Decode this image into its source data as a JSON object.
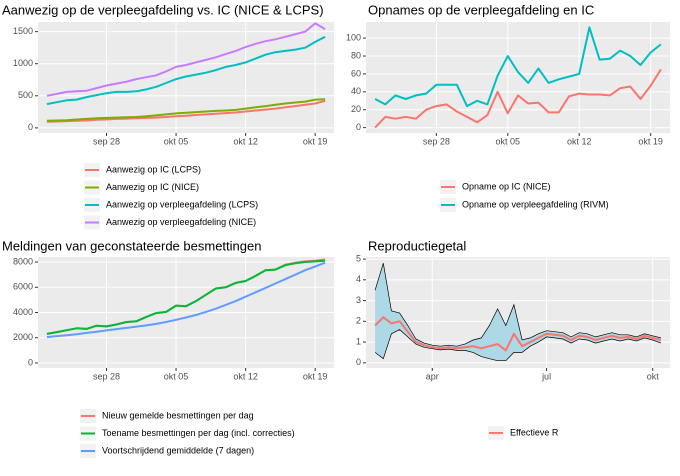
{
  "chart_data": [
    {
      "type": "line",
      "title": "Aanwezig op de verpleegafdeling vs. IC (NICE & LCPS)",
      "categories": [
        null,
        null,
        null,
        null,
        null,
        null,
        "sep 28",
        null,
        null,
        null,
        null,
        null,
        null,
        "okt 05",
        null,
        null,
        null,
        null,
        null,
        null,
        "okt 12",
        null,
        null,
        null,
        null,
        null,
        null,
        "okt 19",
        null
      ],
      "ylim": [
        -80,
        1650
      ],
      "yticks": [
        0,
        500,
        1000,
        1500
      ],
      "grid": true,
      "legend": "bottom",
      "series": [
        {
          "name": "Aanwezig op IC (LCPS)",
          "color": "#f8766d",
          "values": [
            95,
            100,
            105,
            110,
            115,
            125,
            130,
            140,
            145,
            150,
            155,
            160,
            170,
            180,
            190,
            200,
            210,
            220,
            230,
            240,
            255,
            270,
            285,
            300,
            320,
            340,
            360,
            380,
            420
          ]
        },
        {
          "name": "Aanwezig op IC (NICE)",
          "color": "#7cae00",
          "values": [
            110,
            115,
            120,
            130,
            140,
            150,
            155,
            160,
            165,
            170,
            180,
            195,
            210,
            225,
            235,
            245,
            255,
            265,
            270,
            280,
            300,
            320,
            340,
            360,
            380,
            395,
            410,
            440,
            445
          ]
        },
        {
          "name": "Aanwezig op verpleegafdeling (LCPS)",
          "color": "#00bfc4",
          "values": [
            370,
            400,
            430,
            440,
            480,
            510,
            540,
            560,
            560,
            570,
            600,
            640,
            700,
            760,
            800,
            830,
            860,
            900,
            950,
            980,
            1020,
            1080,
            1140,
            1180,
            1200,
            1220,
            1250,
            1340,
            1420
          ]
        },
        {
          "name": "Aanwezig op verpleegafdeling (NICE)",
          "color": "#c77cff",
          "values": [
            500,
            530,
            560,
            570,
            580,
            620,
            660,
            690,
            720,
            760,
            790,
            820,
            880,
            950,
            980,
            1020,
            1060,
            1100,
            1150,
            1200,
            1260,
            1310,
            1350,
            1380,
            1420,
            1460,
            1500,
            1630,
            1540
          ]
        }
      ]
    },
    {
      "type": "line",
      "title": "Opnames op de verpleegafdeling en IC",
      "categories": [
        null,
        null,
        null,
        null,
        null,
        null,
        "sep 28",
        null,
        null,
        null,
        null,
        null,
        null,
        "okt 05",
        null,
        null,
        null,
        null,
        null,
        null,
        "okt 12",
        null,
        null,
        null,
        null,
        null,
        null,
        "okt 19",
        null
      ],
      "ylim": [
        -6,
        118
      ],
      "yticks": [
        0,
        20,
        40,
        60,
        80,
        100
      ],
      "grid": true,
      "legend": "bottom",
      "series": [
        {
          "name": "Opname op IC (NICE)",
          "color": "#f8766d",
          "values": [
            0,
            12,
            10,
            12,
            10,
            20,
            24,
            26,
            18,
            12,
            6,
            14,
            40,
            16,
            36,
            27,
            28,
            17,
            17,
            35,
            38,
            37,
            37,
            36,
            44,
            46,
            32,
            47,
            65
          ]
        },
        {
          "name": "Opname op verpleegafdeling (RIVM)",
          "color": "#00bfc4",
          "values": [
            32,
            26,
            36,
            32,
            36,
            38,
            48,
            48,
            48,
            24,
            30,
            26,
            58,
            80,
            62,
            50,
            66,
            50,
            54,
            57,
            60,
            112,
            76,
            77,
            86,
            80,
            70,
            84,
            93
          ]
        }
      ]
    },
    {
      "type": "line",
      "title": "Meldingen van geconstateerde besmettingen",
      "categories": [
        null,
        null,
        null,
        null,
        null,
        null,
        "sep 28",
        null,
        null,
        null,
        null,
        null,
        null,
        "okt 05",
        null,
        null,
        null,
        null,
        null,
        null,
        "okt 12",
        null,
        null,
        null,
        null,
        null,
        null,
        "okt 19",
        null
      ],
      "ylim": [
        -400,
        8400
      ],
      "yticks": [
        0,
        2000,
        4000,
        6000,
        8000
      ],
      "grid": true,
      "legend": "bottom",
      "series": [
        {
          "name": "Nieuw gemelde besmettingen per dag",
          "color": "#f8766d",
          "values": [
            2300,
            2450,
            2600,
            2750,
            2700,
            2950,
            2900,
            3050,
            3250,
            3300,
            3650,
            3950,
            4050,
            4550,
            4500,
            4900,
            5400,
            5900,
            6000,
            6350,
            6500,
            6900,
            7350,
            7400,
            7800,
            7950,
            8050,
            8100,
            8200
          ]
        },
        {
          "name": "Toename besmettingen per dag (incl. correcties)",
          "color": "#00ba38",
          "values": [
            2300,
            2450,
            2600,
            2750,
            2700,
            2950,
            2900,
            3050,
            3250,
            3300,
            3650,
            3950,
            4050,
            4550,
            4500,
            4900,
            5400,
            5900,
            6000,
            6350,
            6500,
            6900,
            7350,
            7400,
            7750,
            7900,
            8000,
            8050,
            8100
          ]
        },
        {
          "name": "Voortschrijdend gemiddelde (7 dagen)",
          "color": "#619cff",
          "values": [
            2050,
            2130,
            2200,
            2280,
            2380,
            2480,
            2580,
            2680,
            2780,
            2880,
            2980,
            3100,
            3250,
            3420,
            3600,
            3800,
            4050,
            4300,
            4600,
            4900,
            5250,
            5600,
            5950,
            6300,
            6650,
            7000,
            7350,
            7650,
            7950
          ]
        }
      ]
    },
    {
      "type": "line",
      "title": "Reproductiegetal",
      "categories": [
        null,
        null,
        null,
        null,
        null,
        null,
        null,
        "apr",
        null,
        null,
        null,
        null,
        null,
        null,
        null,
        null,
        null,
        null,
        null,
        null,
        null,
        "jul",
        null,
        null,
        null,
        null,
        null,
        null,
        null,
        null,
        null,
        null,
        null,
        null,
        "okt",
        null
      ],
      "ylim": [
        -0.25,
        5.1
      ],
      "yticks": [
        0,
        1,
        2,
        3,
        4,
        5
      ],
      "grid": true,
      "legend": "bottom",
      "band": {
        "color": "#add8e6",
        "edge": "#000000",
        "upper": [
          3.5,
          4.8,
          2.5,
          2.4,
          1.8,
          1.15,
          0.95,
          0.85,
          0.8,
          0.85,
          0.8,
          0.9,
          1.1,
          1.2,
          1.8,
          2.6,
          1.8,
          2.8,
          1.1,
          1.2,
          1.4,
          1.55,
          1.5,
          1.45,
          1.25,
          1.45,
          1.4,
          1.25,
          1.35,
          1.45,
          1.35,
          1.35,
          1.25,
          1.4,
          1.3,
          1.2
        ],
        "lower": [
          0.5,
          0.2,
          1.4,
          1.6,
          1.25,
          0.9,
          0.75,
          0.68,
          0.62,
          0.66,
          0.6,
          0.6,
          0.5,
          0.3,
          0.2,
          0.1,
          0.1,
          0.5,
          0.5,
          0.8,
          1.0,
          1.25,
          1.2,
          1.15,
          0.95,
          1.15,
          1.1,
          0.95,
          1.05,
          1.15,
          1.05,
          1.15,
          1.05,
          1.2,
          1.1,
          0.95
        ]
      },
      "series": [
        {
          "name": "Effectieve R",
          "color": "#f8766d",
          "values": [
            1.8,
            2.2,
            1.9,
            2.0,
            1.5,
            1.0,
            0.85,
            0.75,
            0.7,
            0.75,
            0.7,
            0.75,
            0.8,
            0.7,
            0.8,
            0.9,
            0.6,
            1.4,
            0.8,
            1.0,
            1.2,
            1.4,
            1.35,
            1.3,
            1.1,
            1.3,
            1.25,
            1.1,
            1.2,
            1.3,
            1.2,
            1.25,
            1.15,
            1.3,
            1.2,
            1.1
          ]
        }
      ]
    }
  ]
}
